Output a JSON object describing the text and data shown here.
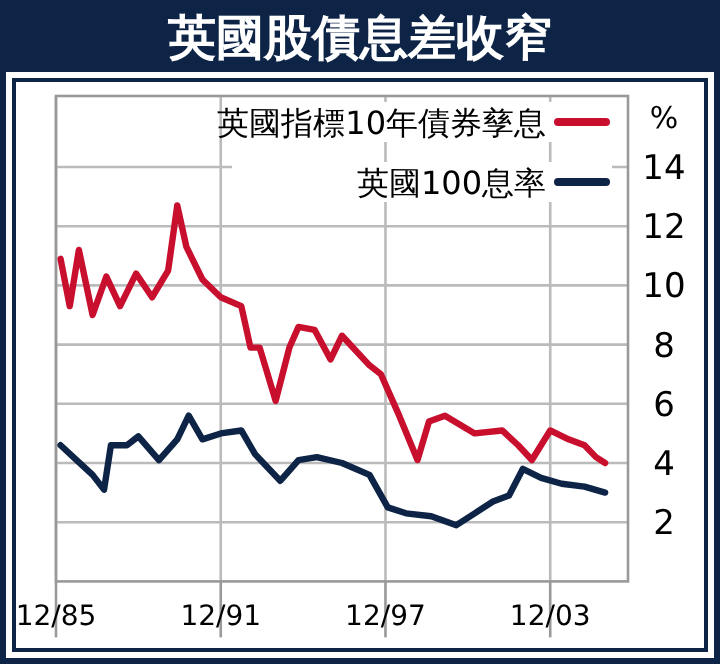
{
  "chart_data": {
    "type": "line",
    "title": "英國股債息差收窄",
    "ylabel": "%",
    "xlim": [
      "1985-12",
      "2006-10"
    ],
    "ylim": [
      0,
      16.4
    ],
    "xticks": [
      {
        "value": "1985-12",
        "label": "12/85"
      },
      {
        "value": "1991-12",
        "label": "12/91"
      },
      {
        "value": "1997-12",
        "label": "12/97"
      },
      {
        "value": "2003-12",
        "label": "12/03"
      }
    ],
    "yticks": [
      2,
      4,
      6,
      8,
      10,
      12,
      14
    ],
    "grid": true,
    "legend": "top right",
    "series": [
      {
        "name": "英國指標10年債券孳息",
        "color": "#c8102e",
        "x": [
          "1986-02",
          "1986-06",
          "1986-10",
          "1987-04",
          "1987-10",
          "1988-04",
          "1988-11",
          "1989-06",
          "1990-01",
          "1990-05",
          "1990-09",
          "1991-04",
          "1991-12",
          "1992-09",
          "1993-01",
          "1993-05",
          "1993-12",
          "1994-06",
          "1994-10",
          "1995-05",
          "1995-12",
          "1996-05",
          "1997-05",
          "1997-10",
          "1998-06",
          "1999-02",
          "1999-07",
          "2000-02",
          "2001-03",
          "2002-03",
          "2002-10",
          "2003-04",
          "2003-12",
          "2004-08",
          "2005-03",
          "2005-08",
          "2005-12"
        ],
        "values": [
          10.9,
          9.3,
          11.2,
          9.0,
          10.3,
          9.3,
          10.4,
          9.6,
          10.5,
          12.7,
          11.3,
          10.2,
          9.6,
          9.3,
          7.9,
          7.9,
          6.1,
          7.9,
          8.6,
          8.5,
          7.5,
          8.3,
          7.3,
          7.0,
          5.6,
          4.1,
          5.4,
          5.6,
          5.0,
          5.1,
          4.6,
          4.1,
          5.1,
          4.8,
          4.6,
          4.2,
          4.0
        ]
      },
      {
        "name": "英國100息率",
        "color": "#0d2447",
        "x": [
          "1986-02",
          "1986-09",
          "1987-04",
          "1987-09",
          "1987-12",
          "1988-07",
          "1988-12",
          "1989-09",
          "1990-05",
          "1990-10",
          "1991-04",
          "1991-12",
          "1992-09",
          "1993-03",
          "1994-02",
          "1994-10",
          "1995-06",
          "1996-05",
          "1997-05",
          "1998-01",
          "1998-09",
          "1999-08",
          "2000-07",
          "2001-03",
          "2001-11",
          "2002-06",
          "2002-12",
          "2003-08",
          "2004-05",
          "2005-03",
          "2005-12"
        ],
        "values": [
          4.6,
          4.1,
          3.6,
          3.1,
          4.6,
          4.6,
          4.9,
          4.1,
          4.8,
          5.6,
          4.8,
          5.0,
          5.1,
          4.3,
          3.4,
          4.1,
          4.2,
          4.0,
          3.6,
          2.5,
          2.3,
          2.2,
          1.9,
          2.3,
          2.7,
          2.9,
          3.8,
          3.5,
          3.3,
          3.2,
          3.0
        ]
      }
    ]
  }
}
